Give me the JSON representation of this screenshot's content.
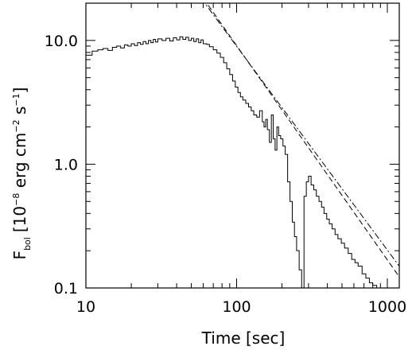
{
  "chart_data": {
    "type": "line",
    "title": "",
    "xlabel": "Time [sec]",
    "ylabel": {
      "prefix": "F",
      "sub": "bol",
      "open": "[10",
      "exp1": "−8",
      "mid": " erg cm",
      "exp2": "−2",
      "mid2": " s",
      "exp3": "−1",
      "close": "]"
    },
    "xscale": "log",
    "yscale": "log",
    "xlim": [
      10,
      1200
    ],
    "ylim": [
      0.1,
      20
    ],
    "xticks": [
      {
        "value": 10,
        "label": "10"
      },
      {
        "value": 100,
        "label": "100"
      },
      {
        "value": 1000,
        "label": "1000"
      }
    ],
    "yticks": [
      {
        "value": 0.1,
        "label": "0.1"
      },
      {
        "value": 1.0,
        "label": "1.0"
      },
      {
        "value": 10.0,
        "label": "10.0"
      }
    ],
    "grid": false,
    "legend": "none",
    "series": [
      {
        "style": "step",
        "x": [
          10,
          11,
          12,
          13,
          14,
          15,
          16,
          17,
          18,
          19,
          20,
          21,
          22,
          23,
          24,
          25,
          26,
          27,
          28,
          29,
          30,
          32,
          34,
          36,
          38,
          40,
          42,
          44,
          46,
          48,
          50,
          52,
          54,
          56,
          58,
          60,
          63,
          66,
          70,
          74,
          78,
          82,
          86,
          90,
          94,
          98,
          102,
          106,
          110,
          115,
          120,
          125,
          130,
          136,
          142,
          148,
          152,
          156,
          160,
          165,
          170,
          175,
          180,
          185,
          190,
          196,
          203,
          210,
          218,
          226,
          234,
          242,
          250,
          260,
          270,
          280,
          290,
          300,
          312,
          325,
          338,
          352,
          366,
          380,
          396,
          412,
          430,
          450,
          470,
          495,
          520,
          550,
          580,
          610,
          640,
          680,
          720,
          760,
          800,
          850,
          900,
          950
        ],
        "y": [
          7.6,
          8.2,
          8.4,
          8.6,
          8.3,
          8.8,
          9.0,
          8.7,
          9.2,
          9.0,
          9.4,
          9.1,
          9.6,
          9.3,
          9.8,
          9.4,
          10.0,
          9.6,
          10.2,
          9.7,
          10.3,
          10.0,
          10.4,
          9.9,
          10.5,
          10.1,
          10.7,
          10.2,
          10.6,
          10.0,
          10.4,
          9.8,
          10.3,
          9.6,
          10.1,
          9.4,
          9.3,
          8.9,
          8.4,
          7.9,
          7.3,
          6.6,
          5.9,
          5.3,
          4.7,
          4.2,
          3.8,
          3.5,
          3.3,
          3.1,
          2.9,
          2.7,
          2.5,
          2.4,
          2.7,
          2.2,
          2.0,
          2.3,
          1.9,
          1.5,
          2.5,
          1.6,
          1.3,
          2.0,
          1.7,
          1.6,
          1.4,
          1.2,
          0.72,
          0.5,
          0.34,
          0.26,
          0.2,
          0.14,
          0.1,
          0.55,
          0.72,
          0.8,
          0.68,
          0.62,
          0.55,
          0.5,
          0.45,
          0.4,
          0.36,
          0.33,
          0.3,
          0.27,
          0.25,
          0.23,
          0.21,
          0.19,
          0.17,
          0.16,
          0.15,
          0.13,
          0.12,
          0.11,
          0.105,
          0.1,
          0.1,
          0.1
        ]
      },
      {
        "style": "dashed",
        "x": [
          60,
          1200
        ],
        "y": [
          22.0,
          0.123
        ]
      },
      {
        "style": "dash-dot",
        "x": [
          58,
          1200
        ],
        "y": [
          22.0,
          0.15
        ]
      }
    ]
  }
}
